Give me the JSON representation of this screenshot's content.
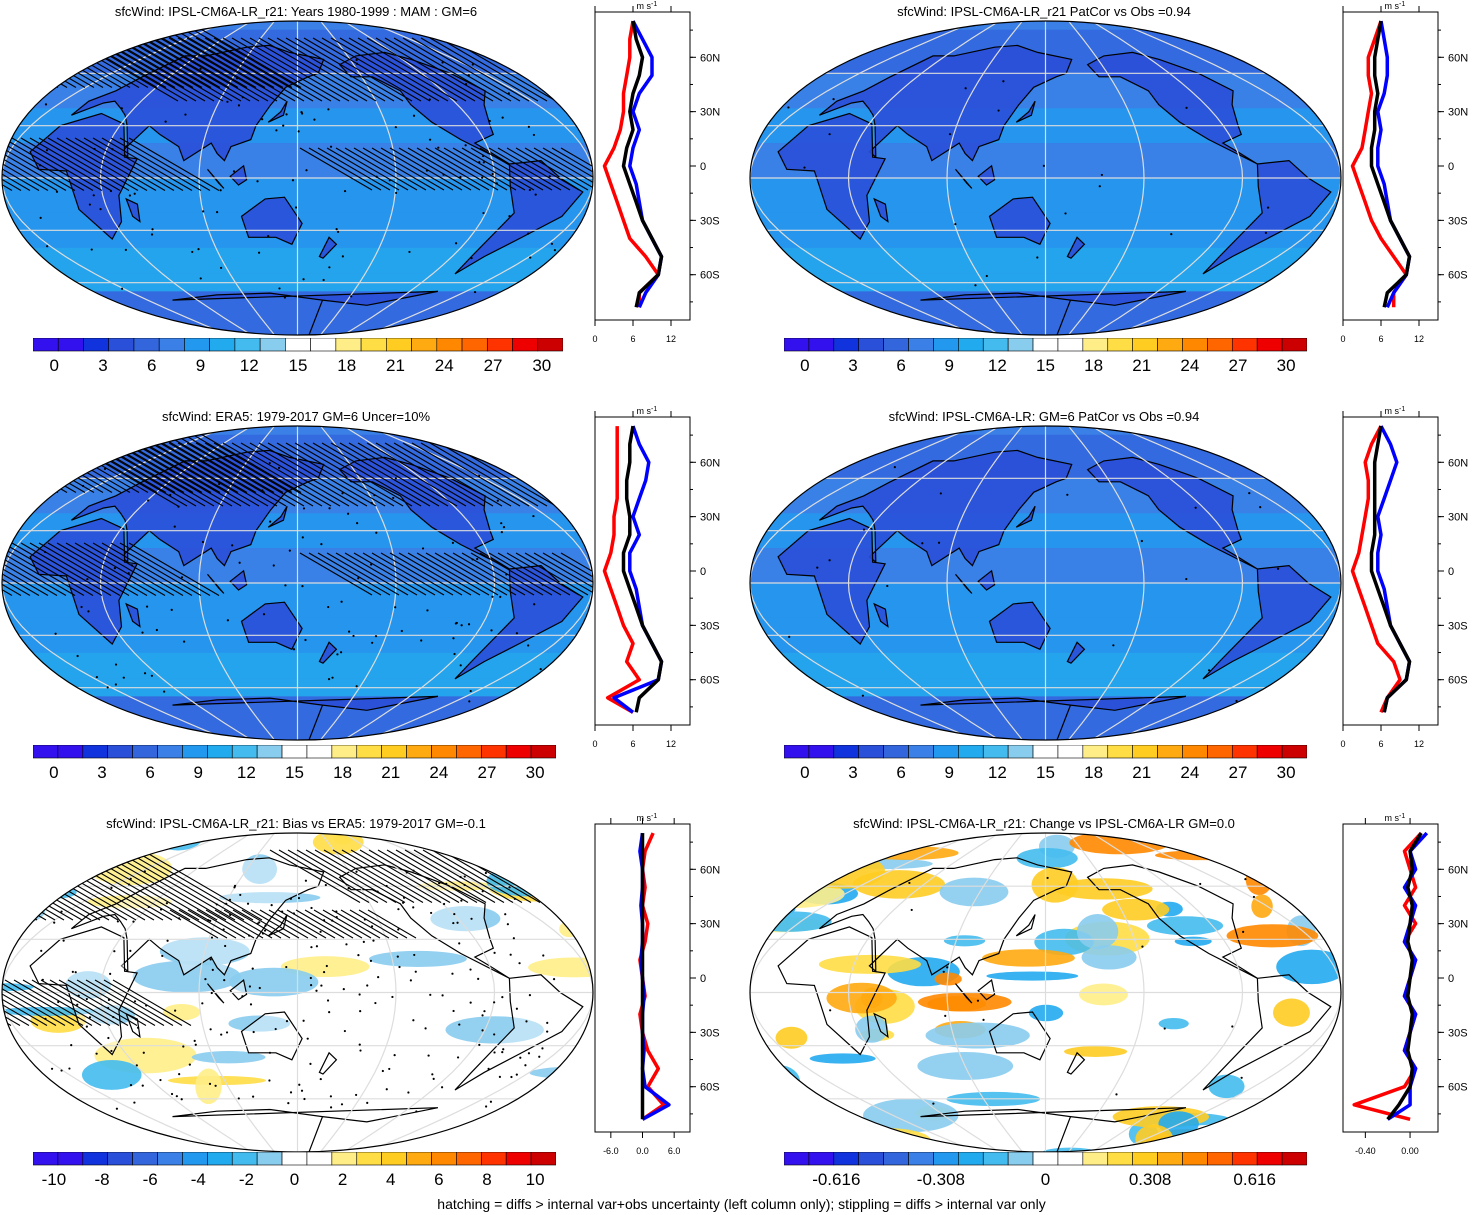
{
  "footer": "hatching = diffs > internal var+obs uncertainty (left column only); stippling = diffs > internal var only",
  "colors": {
    "palette": [
      "#3311ee",
      "#1133dd",
      "#2a4fd8",
      "#3366dd",
      "#3a80e6",
      "#2299ee",
      "#22aaee",
      "#44bbee",
      "#88ccee",
      "#ffffff",
      "#ffffff",
      "#ffee88",
      "#ffdd44",
      "#ffcc22",
      "#ffaa11",
      "#ff8800",
      "#ff6600",
      "#ff3300",
      "#ee0000",
      "#cc0000"
    ],
    "obs": "#ff0000",
    "model": "#000000",
    "other": "#0000ff"
  },
  "panels": [
    {
      "id": "p1",
      "title": "sfcWind: IPSL-CM6A-LR_r21: Years 1980-1999 : MAM : GM=6",
      "field": "mean",
      "hatch": true,
      "stipple": true,
      "cbar_labels": [
        "0",
        "3",
        "6",
        "9",
        "12",
        "15",
        "18",
        "21",
        "24",
        "27",
        "30"
      ],
      "zonal": {
        "unit": "m s",
        "unit_sup": "-1",
        "xticks": [
          "0",
          "6",
          "12"
        ],
        "yticks": [
          "60N",
          "30N",
          "0",
          "30S",
          "60S"
        ]
      }
    },
    {
      "id": "p2",
      "title": "sfcWind: IPSL-CM6A-LR_r21 PatCor vs Obs =0.94",
      "field": "mean",
      "hatch": false,
      "stipple": true,
      "cbar_labels": [
        "0",
        "3",
        "6",
        "9",
        "12",
        "15",
        "18",
        "21",
        "24",
        "27",
        "30"
      ],
      "zonal": {
        "unit": "m s",
        "unit_sup": "-1",
        "xticks": [
          "0",
          "6",
          "12"
        ],
        "yticks": [
          "60N",
          "30N",
          "0",
          "30S",
          "60S"
        ]
      }
    },
    {
      "id": "p3",
      "title": "sfcWind: ERA5: 1979-2017 GM=6 Uncer=10%",
      "field": "mean",
      "hatch": true,
      "stipple": true,
      "cbar_labels": [
        "0",
        "3",
        "6",
        "9",
        "12",
        "15",
        "18",
        "21",
        "24",
        "27",
        "30"
      ],
      "zonal": {
        "unit": "m s",
        "unit_sup": "-1",
        "xticks": [
          "0",
          "6",
          "12"
        ],
        "yticks": [
          "60N",
          "30N",
          "0",
          "30S",
          "60S"
        ]
      }
    },
    {
      "id": "p4",
      "title": "sfcWind: IPSL-CM6A-LR: GM=6 PatCor vs Obs =0.94",
      "field": "mean",
      "hatch": false,
      "stipple": true,
      "cbar_labels": [
        "0",
        "3",
        "6",
        "9",
        "12",
        "15",
        "18",
        "21",
        "24",
        "27",
        "30"
      ],
      "zonal": {
        "unit": "m s",
        "unit_sup": "-1",
        "xticks": [
          "0",
          "6",
          "12"
        ],
        "yticks": [
          "60N",
          "30N",
          "0",
          "30S",
          "60S"
        ]
      }
    },
    {
      "id": "p5",
      "title": "sfcWind: IPSL-CM6A-LR_r21: Bias vs ERA5: 1979-2017 GM=-0.1",
      "field": "bias",
      "hatch": true,
      "stipple": true,
      "cbar_labels": [
        "-10",
        "-8",
        "-6",
        "-4",
        "-2",
        "0",
        "2",
        "4",
        "6",
        "8",
        "10"
      ],
      "zonal": {
        "unit": "m s",
        "unit_sup": "-1",
        "xticks": [
          "-6.0",
          "0.0",
          "6.0"
        ],
        "yticks": [
          "60N",
          "30N",
          "0",
          "30S",
          "60S"
        ]
      }
    },
    {
      "id": "p6",
      "title": "sfcWind: IPSL-CM6A-LR_r21: Change vs IPSL-CM6A-LR GM=0.0",
      "field": "change",
      "hatch": false,
      "stipple": true,
      "cbar_labels": [
        "-0.616",
        "-0.308",
        "0",
        "0.308",
        "0.616"
      ],
      "zonal": {
        "unit": "m s",
        "unit_sup": "-1",
        "xticks": [
          "-0.40",
          "0.00"
        ],
        "yticks": [
          "60N",
          "30N",
          "0",
          "30S",
          "60S"
        ]
      }
    }
  ],
  "chart_data": [
    {
      "type": "heatmap",
      "panel": "p1",
      "title": "sfcWind: IPSL-CM6A-LR_r21: Years 1980-1999 : MAM : GM=6",
      "colorbar": [
        0,
        3,
        6,
        9,
        12,
        15,
        18,
        21,
        24,
        27,
        30
      ],
      "zonal_mean": {
        "lat": [
          80,
          70,
          60,
          50,
          40,
          30,
          20,
          10,
          0,
          -10,
          -20,
          -30,
          -40,
          -50,
          -60,
          -70,
          -78
        ],
        "series": [
          {
            "values": [
              6,
              5.5,
              5.5,
              5,
              4.5,
              4.5,
              4,
              3,
              1.5,
              2.5,
              3.5,
              4.5,
              5.5,
              8,
              10,
              7,
              7
            ]
          },
          {
            "values": [
              6,
              6.5,
              7.5,
              7,
              6,
              5.5,
              6,
              5,
              4.5,
              5.5,
              6.5,
              7.5,
              9,
              10.5,
              10,
              7,
              6.5
            ]
          },
          {
            "values": [
              6,
              7.5,
              9,
              9,
              7,
              6,
              7,
              6,
              5.5,
              6.5,
              7,
              7.5,
              9,
              10.5,
              10,
              8,
              7
            ]
          }
        ],
        "xlim": [
          0,
          15
        ]
      }
    },
    {
      "type": "heatmap",
      "panel": "p2",
      "title": "sfcWind: IPSL-CM6A-LR_r21 PatCor vs Obs =0.94",
      "colorbar": [
        0,
        3,
        6,
        9,
        12,
        15,
        18,
        21,
        24,
        27,
        30
      ],
      "zonal_mean": {
        "lat": [
          80,
          70,
          60,
          50,
          40,
          30,
          20,
          10,
          0,
          -10,
          -20,
          -30,
          -40,
          -50,
          -60,
          -70,
          -78
        ],
        "series": [
          {
            "values": [
              6,
              5,
              4,
              4,
              4.5,
              4,
              3.5,
              3,
              1.5,
              2.5,
              3.5,
              4.5,
              6,
              8,
              10,
              8,
              8
            ]
          },
          {
            "values": [
              6,
              5.5,
              5,
              5,
              5.5,
              5,
              5,
              4.5,
              4.5,
              5.5,
              6.5,
              7.5,
              9,
              10.5,
              10,
              7,
              6.5
            ]
          },
          {
            "values": [
              6,
              6.5,
              7,
              7,
              6.5,
              5.5,
              6,
              5.5,
              5.5,
              6.5,
              7,
              7.5,
              9,
              10.5,
              10,
              8,
              7
            ]
          }
        ],
        "xlim": [
          0,
          15
        ]
      }
    },
    {
      "type": "heatmap",
      "panel": "p3",
      "title": "sfcWind: ERA5: 1979-2017 GM=6 Uncer=10%",
      "colorbar": [
        0,
        3,
        6,
        9,
        12,
        15,
        18,
        21,
        24,
        27,
        30
      ],
      "zonal_mean": {
        "lat": [
          80,
          70,
          60,
          50,
          40,
          30,
          20,
          10,
          0,
          -10,
          -20,
          -30,
          -40,
          -50,
          -60,
          -70,
          -78
        ],
        "series": [
          {
            "values": [
              3.5,
              3.5,
              3.5,
              3.5,
              3.5,
              3,
              3,
              2.5,
              1.5,
              2.5,
              3.5,
              4.5,
              6,
              5,
              7,
              2,
              6
            ]
          },
          {
            "values": [
              6,
              5.5,
              5.5,
              5,
              5,
              5.5,
              5.5,
              4.5,
              4.5,
              5.5,
              6.5,
              7.5,
              9,
              10.5,
              10,
              7,
              6.5
            ]
          },
          {
            "values": [
              6,
              7,
              8.5,
              8,
              7,
              6,
              7,
              5.5,
              5.5,
              6.5,
              7,
              7.5,
              9,
              10.5,
              10,
              3,
              6
            ]
          }
        ],
        "xlim": [
          0,
          15
        ]
      }
    },
    {
      "type": "heatmap",
      "panel": "p4",
      "title": "sfcWind: IPSL-CM6A-LR: GM=6 PatCor vs Obs =0.94",
      "colorbar": [
        0,
        3,
        6,
        9,
        12,
        15,
        18,
        21,
        24,
        27,
        30
      ],
      "zonal_mean": {
        "lat": [
          80,
          70,
          60,
          50,
          40,
          30,
          20,
          10,
          0,
          -10,
          -20,
          -30,
          -40,
          -50,
          -60,
          -70,
          -78
        ],
        "series": [
          {
            "values": [
              6,
              4.5,
              3.5,
              4,
              4,
              3.5,
              3,
              2.5,
              1.5,
              2.5,
              3.5,
              4.5,
              5.5,
              8,
              9,
              7,
              6
            ]
          },
          {
            "values": [
              6,
              5.5,
              5,
              5,
              5,
              5,
              5,
              4.5,
              4.5,
              5.5,
              6.5,
              7.5,
              9,
              10.5,
              10,
              7,
              6.5
            ]
          },
          {
            "values": [
              6,
              7.5,
              8.5,
              7.5,
              6.5,
              5.5,
              6,
              5.5,
              5.5,
              6.5,
              7,
              7.5,
              9,
              10.5,
              10,
              7,
              6.5
            ]
          }
        ],
        "xlim": [
          0,
          15
        ]
      }
    },
    {
      "type": "heatmap",
      "panel": "p5",
      "title": "sfcWind: IPSL-CM6A-LR_r21: Bias vs ERA5: 1979-2017 GM=-0.1",
      "colorbar": [
        -10,
        -8,
        -6,
        -4,
        -2,
        0,
        2,
        4,
        6,
        8,
        10
      ],
      "zonal_mean": {
        "lat": [
          80,
          70,
          60,
          50,
          40,
          30,
          20,
          10,
          0,
          -10,
          -20,
          -30,
          -40,
          -50,
          -60,
          -70,
          -78
        ],
        "series": [
          {
            "values": [
              2,
              0.5,
              0,
              0.5,
              0,
              1,
              0.5,
              -0.5,
              0,
              0.5,
              -0.5,
              0,
              1,
              3,
              1,
              4,
              0
            ]
          },
          {
            "values": [
              0,
              0,
              0,
              0,
              0,
              0,
              0,
              0,
              0,
              0,
              0,
              0,
              0,
              0,
              0,
              0,
              0
            ]
          },
          {
            "values": [
              0,
              -0.5,
              0,
              0,
              -0.3,
              0,
              0,
              -0.3,
              0,
              0.3,
              0,
              0,
              0.3,
              0,
              0.5,
              5,
              0
            ]
          }
        ],
        "xlim": [
          -9,
          9
        ]
      }
    },
    {
      "type": "heatmap",
      "panel": "p6",
      "title": "sfcWind: IPSL-CM6A-LR_r21: Change vs IPSL-CM6A-LR GM=0.0",
      "colorbar": [
        -0.616,
        -0.308,
        0,
        0.308,
        0.616
      ],
      "zonal_mean": {
        "lat": [
          80,
          70,
          60,
          50,
          40,
          30,
          20,
          10,
          0,
          -10,
          -20,
          -30,
          -40,
          -50,
          -60,
          -70,
          -78
        ],
        "series": [
          {
            "values": [
              0.1,
              -0.05,
              0,
              0.05,
              -0.05,
              0.05,
              -0.05,
              0.05,
              0,
              -0.05,
              0.05,
              0,
              -0.05,
              0.05,
              -0.05,
              -0.5,
              0
            ]
          },
          {
            "values": [
              0.1,
              0,
              0.02,
              -0.02,
              0.02,
              0,
              -0.02,
              0.02,
              0,
              -0.02,
              0.02,
              0,
              -0.02,
              0.02,
              0,
              -0.1,
              -0.2
            ]
          },
          {
            "values": [
              0.15,
              0,
              0.05,
              -0.05,
              0.05,
              0,
              -0.05,
              0.05,
              0,
              -0.05,
              0.05,
              0,
              -0.05,
              0.05,
              0,
              0,
              -0.2
            ]
          }
        ],
        "xlim": [
          -0.6,
          0.25
        ]
      }
    }
  ]
}
